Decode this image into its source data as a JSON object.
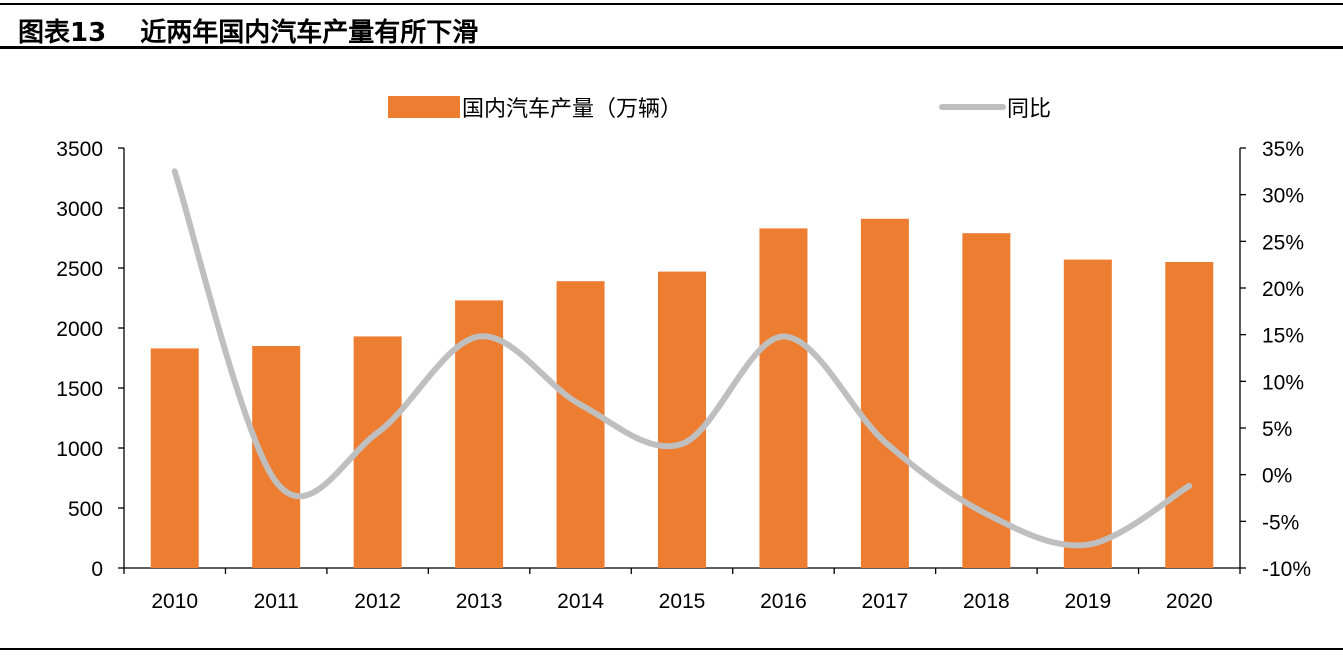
{
  "header": {
    "figure_label": "图表13",
    "title": "近两年国内汽车产量有所下滑"
  },
  "chart_data": {
    "type": "bar",
    "categories": [
      "2010",
      "2011",
      "2012",
      "2013",
      "2014",
      "2015",
      "2016",
      "2017",
      "2018",
      "2019",
      "2020"
    ],
    "series": [
      {
        "name": "国内汽车产量（万辆）",
        "type": "bar",
        "axis": "left",
        "color": "#ED7D31",
        "values": [
          1830,
          1850,
          1930,
          2230,
          2390,
          2470,
          2830,
          2910,
          2790,
          2570,
          2550
        ]
      },
      {
        "name": "同比",
        "type": "line",
        "axis": "right",
        "color": "#BFBFBF",
        "values": [
          32.5,
          -0.8,
          4.5,
          14.8,
          7.5,
          3.3,
          14.8,
          3.5,
          -4.2,
          -7.5,
          -1.2
        ]
      }
    ],
    "y_left": {
      "min": 0,
      "max": 3500,
      "ticks": [
        "0",
        "500",
        "1000",
        "1500",
        "2000",
        "2500",
        "3000",
        "3500"
      ]
    },
    "y_right": {
      "min": -10,
      "max": 35,
      "ticks": [
        "-10%",
        "-5%",
        "0%",
        "5%",
        "10%",
        "15%",
        "20%",
        "25%",
        "30%",
        "35%"
      ]
    },
    "grid": false,
    "legend_position": "top"
  }
}
